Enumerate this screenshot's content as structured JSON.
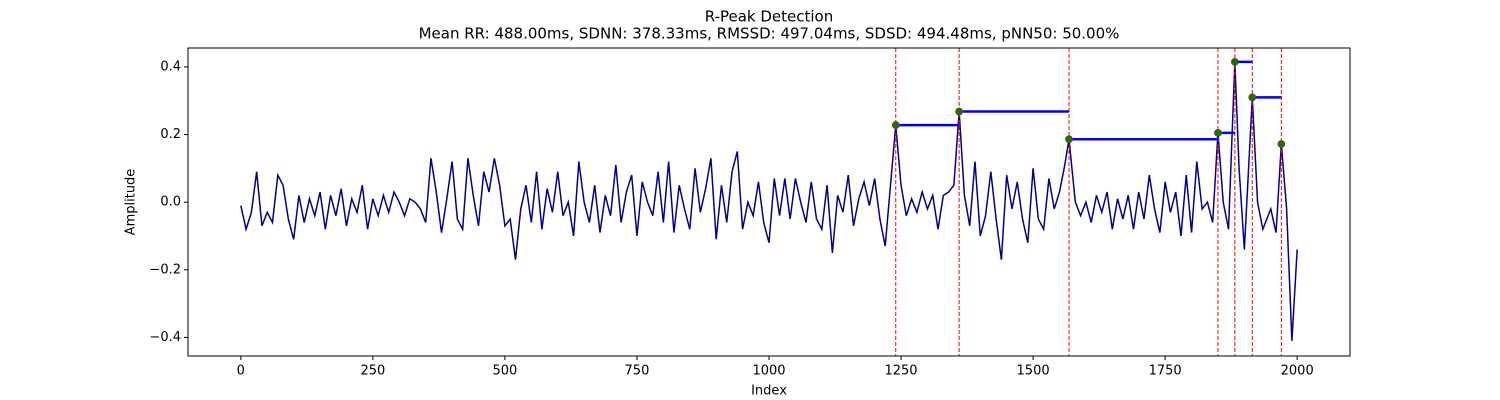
{
  "chart_data": {
    "type": "line",
    "title": "R-Peak Detection",
    "subtitle": "Mean RR: 488.00ms, SDNN: 378.33ms, RMSSD: 497.04ms, SDSD: 494.48ms, pNN50: 50.00%",
    "xlabel": "Index",
    "ylabel": "Amplitude",
    "color": "#00008b",
    "x": [
      0,
      10,
      20,
      30,
      40,
      50,
      60,
      70,
      80,
      90,
      100,
      110,
      120,
      130,
      140,
      150,
      160,
      170,
      180,
      190,
      200,
      210,
      220,
      230,
      240,
      250,
      260,
      270,
      280,
      290,
      300,
      310,
      320,
      330,
      340,
      350,
      360,
      370,
      380,
      390,
      400,
      410,
      420,
      430,
      440,
      450,
      460,
      470,
      480,
      490,
      500,
      510,
      520,
      530,
      540,
      550,
      560,
      570,
      580,
      590,
      600,
      610,
      620,
      630,
      640,
      650,
      660,
      670,
      680,
      690,
      700,
      710,
      720,
      730,
      740,
      750,
      760,
      770,
      780,
      790,
      800,
      810,
      820,
      830,
      840,
      850,
      860,
      870,
      880,
      890,
      900,
      910,
      920,
      930,
      940,
      950,
      960,
      970,
      980,
      990,
      1000,
      1010,
      1020,
      1030,
      1040,
      1050,
      1060,
      1070,
      1080,
      1090,
      1100,
      1110,
      1120,
      1130,
      1140,
      1150,
      1160,
      1170,
      1180,
      1190,
      1200,
      1210,
      1220,
      1230,
      1240,
      1250,
      1260,
      1270,
      1280,
      1290,
      1300,
      1310,
      1320,
      1330,
      1340,
      1350,
      1360,
      1370,
      1380,
      1390,
      1400,
      1410,
      1420,
      1430,
      1440,
      1450,
      1460,
      1470,
      1480,
      1490,
      1500,
      1510,
      1520,
      1530,
      1540,
      1550,
      1560,
      1568,
      1580,
      1590,
      1600,
      1610,
      1620,
      1630,
      1640,
      1650,
      1660,
      1670,
      1680,
      1690,
      1700,
      1710,
      1720,
      1730,
      1740,
      1750,
      1760,
      1770,
      1780,
      1790,
      1800,
      1810,
      1820,
      1830,
      1840,
      1850,
      1860,
      1870,
      1882,
      1890,
      1900,
      1915,
      1925,
      1935,
      1950,
      1960,
      1970,
      1980,
      1990,
      2000
    ],
    "values": [
      -0.01,
      -0.08,
      -0.03,
      0.09,
      -0.07,
      -0.03,
      -0.06,
      0.08,
      0.05,
      -0.05,
      -0.11,
      0.02,
      -0.06,
      0.01,
      -0.04,
      0.03,
      -0.08,
      0.02,
      -0.04,
      0.04,
      -0.07,
      0.01,
      -0.03,
      0.05,
      -0.08,
      0.01,
      -0.04,
      0.02,
      -0.03,
      0.03,
      0.0,
      -0.04,
      0.01,
      0.0,
      -0.02,
      -0.06,
      0.13,
      0.03,
      -0.09,
      0.01,
      0.12,
      -0.05,
      -0.08,
      0.13,
      0.02,
      -0.07,
      0.09,
      0.03,
      0.13,
      0.05,
      -0.07,
      -0.05,
      -0.17,
      -0.02,
      0.05,
      -0.06,
      0.09,
      -0.08,
      0.04,
      -0.03,
      0.09,
      -0.04,
      0.0,
      -0.1,
      0.12,
      0.0,
      -0.06,
      0.05,
      -0.09,
      0.02,
      -0.04,
      0.11,
      -0.06,
      0.03,
      0.08,
      -0.1,
      0.06,
      0.0,
      -0.04,
      0.09,
      -0.06,
      0.12,
      -0.09,
      0.05,
      -0.02,
      -0.08,
      0.1,
      -0.03,
      0.04,
      0.13,
      -0.11,
      0.05,
      -0.06,
      0.09,
      0.15,
      -0.08,
      0.0,
      -0.04,
      0.06,
      -0.06,
      -0.12,
      0.07,
      -0.04,
      0.07,
      -0.05,
      0.07,
      0.0,
      -0.06,
      0.06,
      -0.05,
      -0.08,
      0.05,
      -0.15,
      0.02,
      -0.03,
      0.08,
      -0.07,
      0.01,
      0.06,
      -0.01,
      0.07,
      -0.05,
      -0.13,
      0.05,
      0.228,
      0.05,
      -0.04,
      0.01,
      -0.03,
      0.03,
      -0.02,
      0.02,
      -0.08,
      0.02,
      0.03,
      0.05,
      0.268,
      0.02,
      -0.07,
      0.12,
      -0.1,
      -0.04,
      0.09,
      -0.05,
      -0.17,
      0.08,
      -0.02,
      0.06,
      -0.05,
      -0.12,
      0.1,
      -0.05,
      -0.08,
      0.07,
      -0.02,
      0.03,
      0.11,
      0.186,
      0.0,
      -0.04,
      0.0,
      -0.06,
      0.02,
      -0.03,
      0.03,
      -0.08,
      0.01,
      -0.05,
      0.02,
      -0.08,
      0.03,
      -0.05,
      0.08,
      -0.02,
      -0.09,
      0.06,
      -0.03,
      0.03,
      -0.1,
      0.08,
      -0.09,
      0.12,
      -0.02,
      0.0,
      -0.06,
      0.205,
      0.0,
      -0.08,
      0.415,
      0.1,
      -0.14,
      0.31,
      0.0,
      -0.08,
      -0.02,
      -0.09,
      0.172,
      -0.02,
      -0.41,
      -0.14
    ],
    "peaks": {
      "x": [
        1240,
        1360,
        1568,
        1850,
        1882,
        1915,
        1970
      ],
      "values": [
        0.228,
        0.268,
        0.186,
        0.205,
        0.415,
        0.31,
        0.172
      ],
      "color": "#008000",
      "line_color": "#ff0000",
      "interval_color": "#0000ff"
    },
    "xlim": [
      -100,
      2100
    ],
    "ylim": [
      -0.455,
      0.456
    ],
    "xticks": [
      0,
      250,
      500,
      750,
      1000,
      1250,
      1500,
      1750,
      2000
    ],
    "yticks": [
      {
        "value": -0.4,
        "label": "−0.4"
      },
      {
        "value": -0.2,
        "label": "−0.2"
      },
      {
        "value": 0,
        "label": "0.0"
      },
      0.2,
      0.4
    ]
  }
}
